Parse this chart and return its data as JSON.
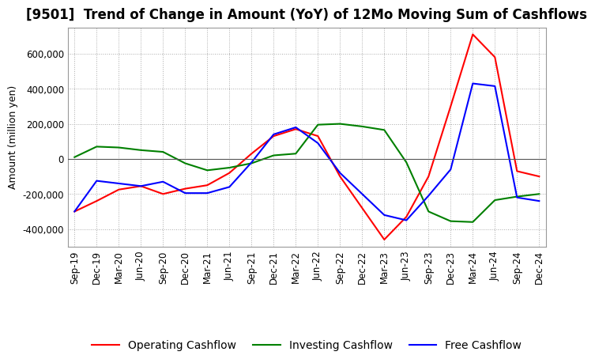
{
  "title": "[9501]  Trend of Change in Amount (YoY) of 12Mo Moving Sum of Cashflows",
  "ylabel": "Amount (million yen)",
  "x_labels": [
    "Sep-19",
    "Dec-19",
    "Mar-20",
    "Jun-20",
    "Sep-20",
    "Dec-20",
    "Mar-21",
    "Jun-21",
    "Sep-21",
    "Dec-21",
    "Mar-22",
    "Jun-22",
    "Sep-22",
    "Dec-22",
    "Mar-23",
    "Jun-23",
    "Sep-23",
    "Dec-23",
    "Mar-24",
    "Jun-24",
    "Sep-24",
    "Dec-24"
  ],
  "operating": [
    -300000,
    -240000,
    -175000,
    -155000,
    -200000,
    -170000,
    -150000,
    -80000,
    30000,
    130000,
    170000,
    130000,
    -100000,
    -280000,
    -460000,
    -330000,
    -100000,
    300000,
    710000,
    580000,
    -70000,
    -100000
  ],
  "investing": [
    10000,
    70000,
    65000,
    50000,
    40000,
    -25000,
    -65000,
    -50000,
    -25000,
    20000,
    30000,
    195000,
    200000,
    185000,
    165000,
    -20000,
    -300000,
    -355000,
    -360000,
    -235000,
    -215000,
    -200000
  ],
  "free": [
    -300000,
    -125000,
    -140000,
    -155000,
    -130000,
    -195000,
    -195000,
    -160000,
    -20000,
    140000,
    180000,
    90000,
    -80000,
    -200000,
    -320000,
    -350000,
    -210000,
    -60000,
    430000,
    415000,
    -220000,
    -240000
  ],
  "ylim": [
    -500000,
    750000
  ],
  "yticks": [
    -400000,
    -200000,
    0,
    200000,
    400000,
    600000
  ],
  "operating_color": "#ff0000",
  "investing_color": "#008000",
  "free_color": "#0000ff",
  "bg_color": "#ffffff",
  "grid_color": "#aaaaaa",
  "title_fontsize": 12,
  "axis_fontsize": 9,
  "tick_fontsize": 8.5,
  "legend_fontsize": 10
}
